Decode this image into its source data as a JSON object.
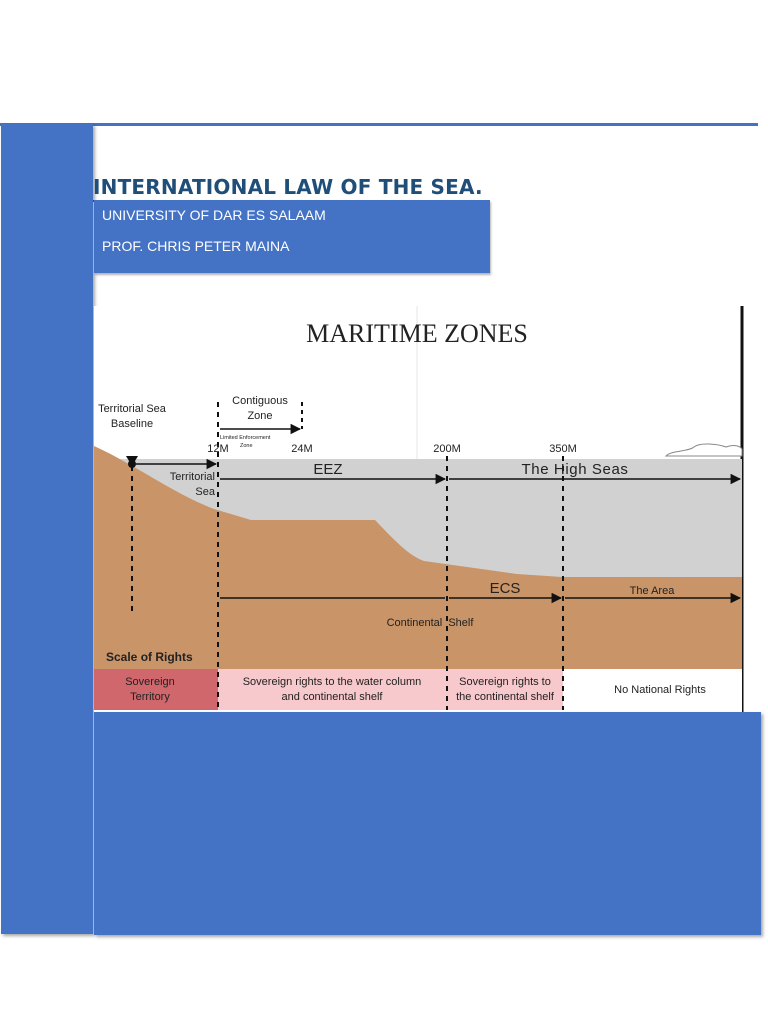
{
  "document": {
    "title": "INTERNATIONAL LAW OF THE SEA.",
    "institution": "UNIVERSITY OF DAR ES SALAAM",
    "author": "PROF. CHRIS PETER MAINA"
  },
  "figure": {
    "heading": "MARITIME ZONES",
    "baseline_label_1": "Territorial Sea",
    "baseline_label_2": "Baseline",
    "contiguous_label_1": "Contiguous",
    "contiguous_label_2": "Zone",
    "limited_label_1": "Limited Enforcement",
    "limited_label_2": "Zone",
    "mark_12": "12M",
    "mark_24": "24M",
    "mark_200": "200M",
    "mark_350": "350M",
    "territorial_label_1": "Territorial",
    "territorial_label_2": "Sea",
    "eez_label": "EEZ",
    "high_seas_label": "The High Seas",
    "ecs_label": "ECS",
    "area_label": "The Area",
    "shelf_label": "Continental  Shelf",
    "scale_label": "Scale of Rights",
    "rights": [
      {
        "line1": "Sovereign",
        "line2": "Territory"
      },
      {
        "line1": "Sovereign rights to the water column",
        "line2": "and continental shelf"
      },
      {
        "line1": "Sovereign rights to",
        "line2": "the continental shelf"
      },
      {
        "line1": "No National Rights",
        "line2": ""
      }
    ],
    "colors": {
      "sea": "#d1d1d1",
      "seabed": "#c89468",
      "sovereign_territory": "#cf676c",
      "sovereign_rights": "#f7c8cc",
      "no_rights": "#ffffff",
      "page_accent": "#4472c4",
      "title_text": "#1f4e79"
    }
  }
}
